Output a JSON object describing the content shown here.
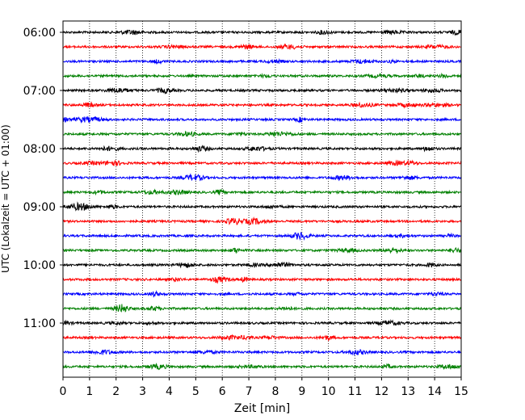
{
  "chart_data": {
    "type": "line",
    "title": "",
    "xlabel": "Zeit  [min]",
    "ylabel": "UTC (Lokalzeit = UTC + 01:00)",
    "xlim": [
      0,
      15
    ],
    "x_ticks": [
      "0",
      "1",
      "2",
      "3",
      "4",
      "5",
      "6",
      "7",
      "8",
      "9",
      "10",
      "11",
      "12",
      "13",
      "14",
      "15"
    ],
    "y_ticks": [
      {
        "label": "06:00",
        "trace": 0
      },
      {
        "label": "07:00",
        "trace": 4
      },
      {
        "label": "08:00",
        "trace": 8
      },
      {
        "label": "09:00",
        "trace": 12
      },
      {
        "label": "10:00",
        "trace": 16
      },
      {
        "label": "11:00",
        "trace": 20
      }
    ],
    "grid": {
      "x": true,
      "y": false,
      "style": "dotted"
    },
    "trace_colors": [
      "#000000",
      "#ff0000",
      "#0000ff",
      "#008000"
    ],
    "trace_count": 24,
    "trace_minutes": 15,
    "series": [
      {
        "start": "06:00"
      },
      {
        "start": "06:15"
      },
      {
        "start": "06:30"
      },
      {
        "start": "06:45"
      },
      {
        "start": "07:00"
      },
      {
        "start": "07:15"
      },
      {
        "start": "07:30"
      },
      {
        "start": "07:45"
      },
      {
        "start": "08:00"
      },
      {
        "start": "08:15"
      },
      {
        "start": "08:30"
      },
      {
        "start": "08:45"
      },
      {
        "start": "09:00"
      },
      {
        "start": "09:15"
      },
      {
        "start": "09:30"
      },
      {
        "start": "09:45"
      },
      {
        "start": "10:00"
      },
      {
        "start": "10:15"
      },
      {
        "start": "10:30"
      },
      {
        "start": "10:45"
      },
      {
        "start": "11:00"
      },
      {
        "start": "11:15"
      },
      {
        "start": "11:30"
      },
      {
        "start": "11:45"
      }
    ]
  }
}
